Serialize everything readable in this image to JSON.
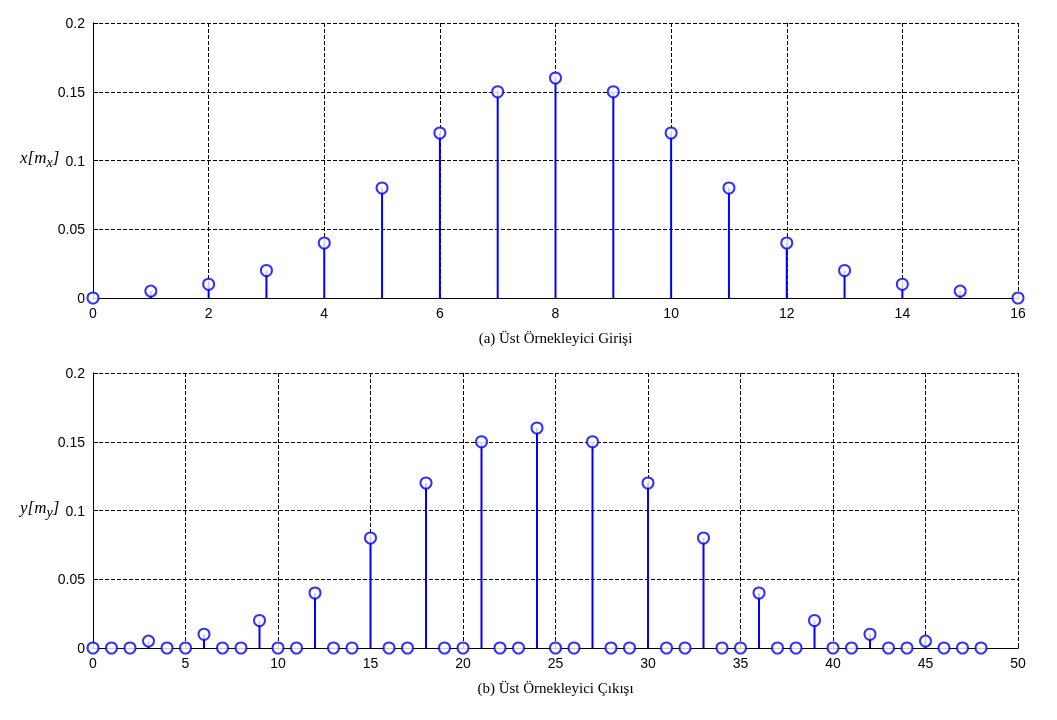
{
  "chart_data": [
    {
      "type": "lollipop",
      "xlabel": "(a) Üst Örnekleyici Girişi",
      "ylabel": "x[m$_{x}$]",
      "color": "#0000ff",
      "marker": "circle",
      "grid": true,
      "x": [
        0,
        1,
        2,
        3,
        4,
        5,
        6,
        7,
        8,
        9,
        10,
        11,
        12,
        13,
        14,
        15,
        16
      ],
      "values": [
        0,
        0.005,
        0.01,
        0.02,
        0.04,
        0.08,
        0.12,
        0.15,
        0.16,
        0.15,
        0.12,
        0.08,
        0.04,
        0.02,
        0.01,
        0.005,
        0
      ],
      "xlim": [
        0,
        16
      ],
      "xticks": [
        0,
        2,
        4,
        6,
        8,
        10,
        12,
        14,
        16
      ],
      "ylim": [
        0,
        0.2
      ],
      "yticks": [
        0,
        0.05,
        0.1,
        0.15,
        0.2
      ]
    },
    {
      "type": "lollipop",
      "xlabel": "(b) Üst Örnekleyici Çıkışı",
      "ylabel": "y[m$_{y}$]",
      "color": "#0000ff",
      "marker": "circle",
      "grid": true,
      "x": [
        0,
        1,
        2,
        3,
        4,
        5,
        6,
        7,
        8,
        9,
        10,
        11,
        12,
        13,
        14,
        15,
        16,
        17,
        18,
        19,
        20,
        21,
        22,
        23,
        24,
        25,
        26,
        27,
        28,
        29,
        30,
        31,
        32,
        33,
        34,
        35,
        36,
        37,
        38,
        39,
        40,
        41,
        42,
        43,
        44,
        45,
        46,
        47,
        48
      ],
      "values": [
        0,
        0,
        0,
        0.005,
        0,
        0,
        0.01,
        0,
        0,
        0.02,
        0,
        0,
        0.04,
        0,
        0,
        0.08,
        0,
        0,
        0.12,
        0,
        0,
        0.15,
        0,
        0,
        0.16,
        0,
        0,
        0.15,
        0,
        0,
        0.12,
        0,
        0,
        0.08,
        0,
        0,
        0.04,
        0,
        0,
        0.02,
        0,
        0,
        0.01,
        0,
        0,
        0.005,
        0,
        0,
        0
      ],
      "xlim": [
        0,
        50
      ],
      "xticks": [
        0,
        5,
        10,
        15,
        20,
        25,
        30,
        35,
        40,
        45,
        50
      ],
      "ylim": [
        0,
        0.2
      ],
      "yticks": [
        0,
        0.05,
        0.1,
        0.15,
        0.2
      ]
    }
  ]
}
